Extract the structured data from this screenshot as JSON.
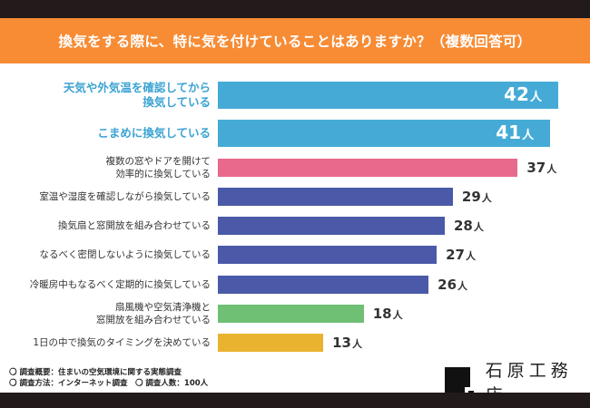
{
  "title": "換気をする際に、特に気を付けていることはありますか？（複数回答可）",
  "chart_data": {
    "type": "bar",
    "orientation": "horizontal",
    "title": "換気をする際に、特に気を付けていることはありますか？（複数回答可）",
    "unit": "人",
    "categories": [
      "天気や外気温を確認してから\n換気している",
      "こまめに換気している",
      "複数の窓やドアを開けて\n効率的に換気している",
      "室温や湿度を確認しながら換気している",
      "換気扇と窓開放を組み合わせている",
      "なるべく密閉しないように換気している",
      "冷暖房中もなるべく定期的に換気している",
      "扇風機や空気清浄機と\n窓開放を組み合わせている",
      "1日の中で換気のタイミングを決めている"
    ],
    "values": [
      42,
      41,
      37,
      29,
      28,
      27,
      26,
      18,
      13
    ],
    "colors": [
      "#45abd6",
      "#45abd6",
      "#e8698b",
      "#4a5aa8",
      "#4a5aa8",
      "#4a5aa8",
      "#4a5aa8",
      "#6fbf74",
      "#e9b330"
    ]
  },
  "notes": [
    "〇 調査概要：住まいの空気環境に関する実態調査",
    "〇 調査方法：インターネット調査　〇 調査人数：100人"
  ],
  "logo": "石原工務店"
}
